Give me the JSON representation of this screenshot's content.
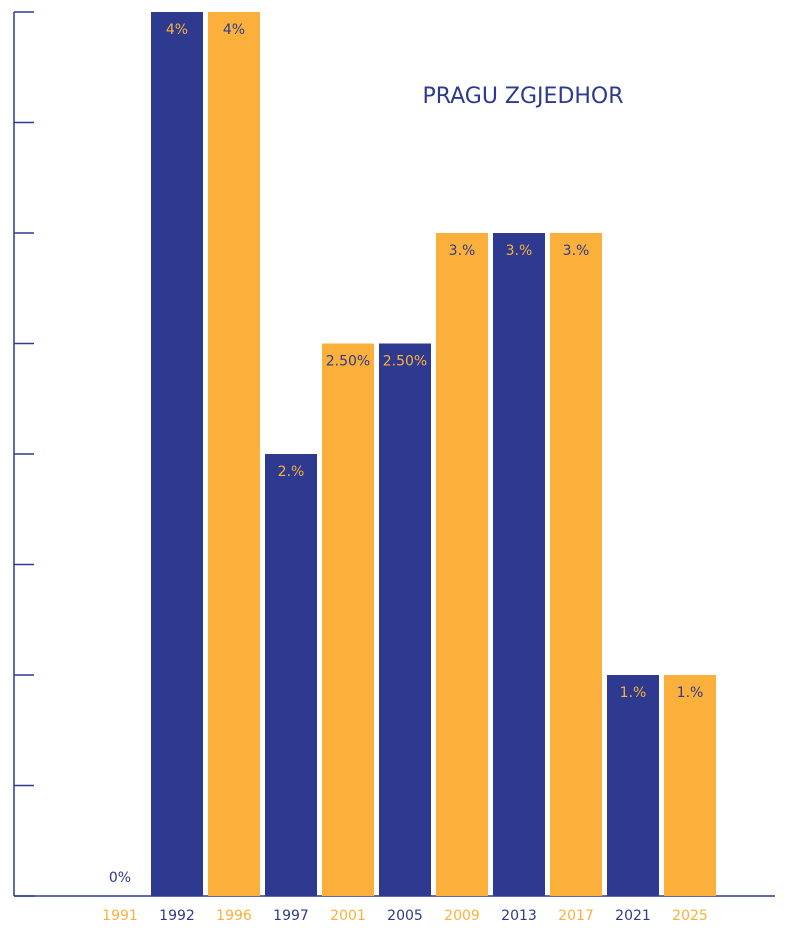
{
  "chart_data": {
    "type": "bar",
    "title": "PRAGU ZGJEDHOR",
    "categories": [
      "1991",
      "1992",
      "1996",
      "1997",
      "2001",
      "2005",
      "2009",
      "2013",
      "2017",
      "2021",
      "2025"
    ],
    "values": [
      0,
      4,
      4,
      2,
      2.5,
      2.5,
      3,
      3,
      3,
      1,
      1
    ],
    "value_labels": [
      "0%",
      "4%",
      "4%",
      "2.%",
      "2.50%",
      "2.50%",
      "3.%",
      "3.%",
      "3.%",
      "1.%",
      "1.%"
    ],
    "colors": [
      "#fbb03b",
      "#2e3a8f",
      "#fbb03b",
      "#2e3a8f",
      "#fbb03b",
      "#2e3a8f",
      "#fbb03b",
      "#2e3a8f",
      "#fbb03b",
      "#2e3a8f",
      "#fbb03b"
    ],
    "ylim": [
      0,
      4
    ],
    "yticks": [
      0,
      0.5,
      1,
      1.5,
      2,
      2.5,
      3,
      3.5,
      4
    ],
    "grid": false
  }
}
